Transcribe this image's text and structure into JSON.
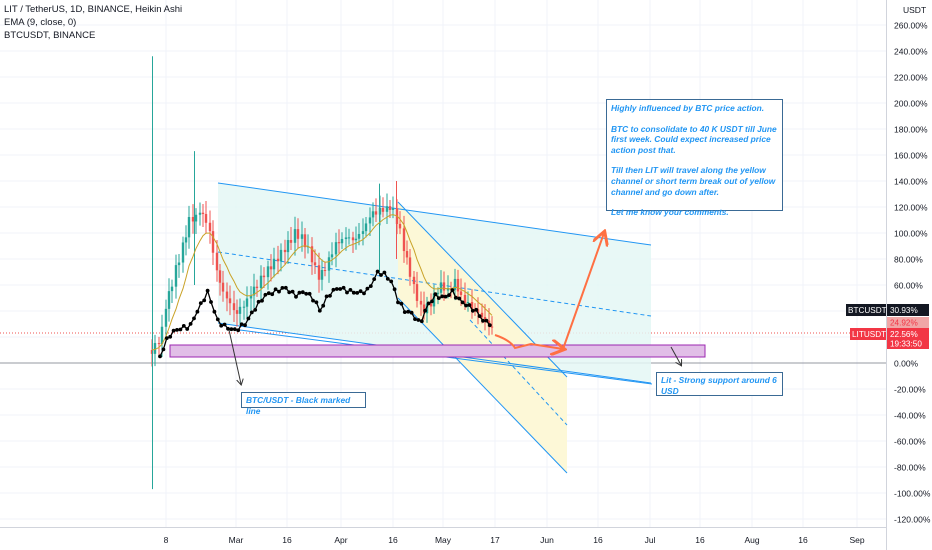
{
  "header": {
    "line1": "LIT / TetherUS, 1D, BINANCE, Heikin Ashi",
    "line2": "EMA (9, close, 0)",
    "line3": "BTCUSDT, BINANCE"
  },
  "price_axis": {
    "unit_label": "USDT",
    "ticks": [
      "260.00%",
      "240.00%",
      "220.00%",
      "200.00%",
      "180.00%",
      "160.00%",
      "140.00%",
      "120.00%",
      "100.00%",
      "80.00%",
      "60.00%",
      "40.00%",
      "20.00%",
      "0.00%",
      "-20.00%",
      "-40.00%",
      "-60.00%",
      "-80.00%",
      "-100.00%",
      "-120.00%"
    ]
  },
  "time_axis": {
    "ticks": [
      "8",
      "Mar",
      "16",
      "Apr",
      "16",
      "May",
      "17",
      "Jun",
      "16",
      "Jul",
      "16",
      "Aug",
      "16",
      "Sep"
    ]
  },
  "badges": {
    "btc_label": "BTCUSDT",
    "btc_value": "30.93%",
    "lit_pct": "24.92%",
    "lit_label": "LITUSDT",
    "lit_value": "22.56%",
    "lit_time": "19:33:50"
  },
  "annotations": {
    "main_note": [
      "Highly influenced by BTC price action.",
      "BTC to consolidate to 40 K USDT till June first week. Could expect increased price action post that.",
      "Till then LIT will travel along the yellow channel or short term break out of yellow channel and go down after.",
      "Let me know your comments."
    ],
    "btc_note": "BTC/USDT - Black marked line",
    "support_note": "Lit - Strong support around 6 USD"
  },
  "colors": {
    "bull": "#26a69a",
    "bear": "#ef5350",
    "btc_line": "#000000",
    "ema": "#f7c948",
    "channel_blue": "#2196f3",
    "channel_fill": "#e4f7f4",
    "yellow_fill": "#fdf8d5",
    "support_zone": "#e1bee7",
    "support_border": "#9c27b0",
    "arrow": "#ff7043",
    "badge_dark": "#131722",
    "badge_red": "#f23645",
    "badge_pink": "#f0a6a6"
  },
  "chart_data": {
    "type": "candlestick",
    "x_ticks": [
      "8",
      "Mar",
      "16",
      "Apr",
      "16",
      "May",
      "17",
      "Jun",
      "16",
      "Jul",
      "16",
      "Aug",
      "16",
      "Sep"
    ],
    "y_ticks_percent": [
      260,
      240,
      220,
      200,
      180,
      160,
      140,
      120,
      100,
      80,
      60,
      40,
      20,
      0,
      -20,
      -40,
      -60,
      -80,
      -100,
      -120
    ],
    "ylim_percent": [
      -125,
      268
    ],
    "series": [
      {
        "name": "LIT / TetherUS",
        "last_value_percent": 22.56
      },
      {
        "name": "BTCUSDT",
        "last_value_percent": 30.93
      }
    ]
  }
}
